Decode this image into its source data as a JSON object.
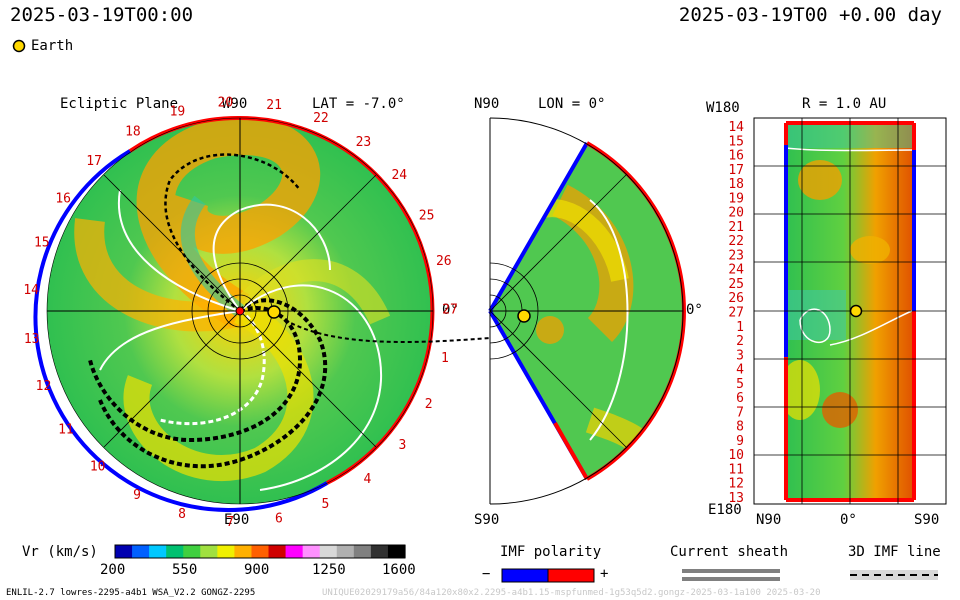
{
  "header": {
    "left_time": "2025-03-19T00:00",
    "right_time": "2025-03-19T00 +0.00 day"
  },
  "legend": {
    "earth_label": "Earth"
  },
  "panels": {
    "ecliptic": {
      "title": "Ecliptic Plane",
      "top": "W90",
      "lat": "LAT = -7.0°",
      "right": "0°",
      "bottom": "E90",
      "numbers": [
        "20",
        "21",
        "22",
        "23",
        "24",
        "25",
        "26",
        "27",
        "1",
        "2",
        "3",
        "4",
        "5",
        "6",
        "7",
        "8",
        "9",
        "10",
        "11",
        "12",
        "13",
        "14",
        "15",
        "16",
        "17",
        "18",
        "19"
      ]
    },
    "meridional": {
      "top": "N90",
      "lon": "LON = 0°",
      "right": "0°",
      "bottom": "S90"
    },
    "radial": {
      "r": "R = 1.0 AU",
      "top_left": "W180",
      "bottom_left": "E180",
      "x_labels": [
        "N90",
        "0°",
        "S90"
      ],
      "y_labels": [
        "14",
        "15",
        "16",
        "17",
        "18",
        "19",
        "20",
        "21",
        "22",
        "23",
        "24",
        "25",
        "26",
        "27",
        "1",
        "2",
        "3",
        "4",
        "5",
        "6",
        "7",
        "8",
        "9",
        "10",
        "11",
        "12",
        "13"
      ]
    }
  },
  "colorbar": {
    "label": "Vr (km/s)",
    "ticks": [
      "200",
      "550",
      "900",
      "1250",
      "1600"
    ],
    "colors": [
      "#0000b0",
      "#0060ff",
      "#00c8ff",
      "#00c070",
      "#40d040",
      "#a0e040",
      "#f0f000",
      "#ffb000",
      "#ff6000",
      "#d00000",
      "#ff00ff",
      "#ff90ff",
      "#d8d8d8",
      "#b0b0b0",
      "#808080",
      "#303030",
      "#000000"
    ]
  },
  "imf": {
    "label": "IMF polarity",
    "minus": "−",
    "plus": "+"
  },
  "sheath": {
    "label": "Current sheath"
  },
  "imf3d": {
    "label": "3D IMF line"
  },
  "footer": {
    "model": "ENLIL-2.7 lowres-2295-a4b1 WSA_V2.2 GONGZ-2295",
    "run": "UNIQUE02029179a56/84a120x80x2.2295-a4b1.15-mspfunmed-1g53q5d2.gongz-2025-03-1a100   2025-03-20"
  }
}
